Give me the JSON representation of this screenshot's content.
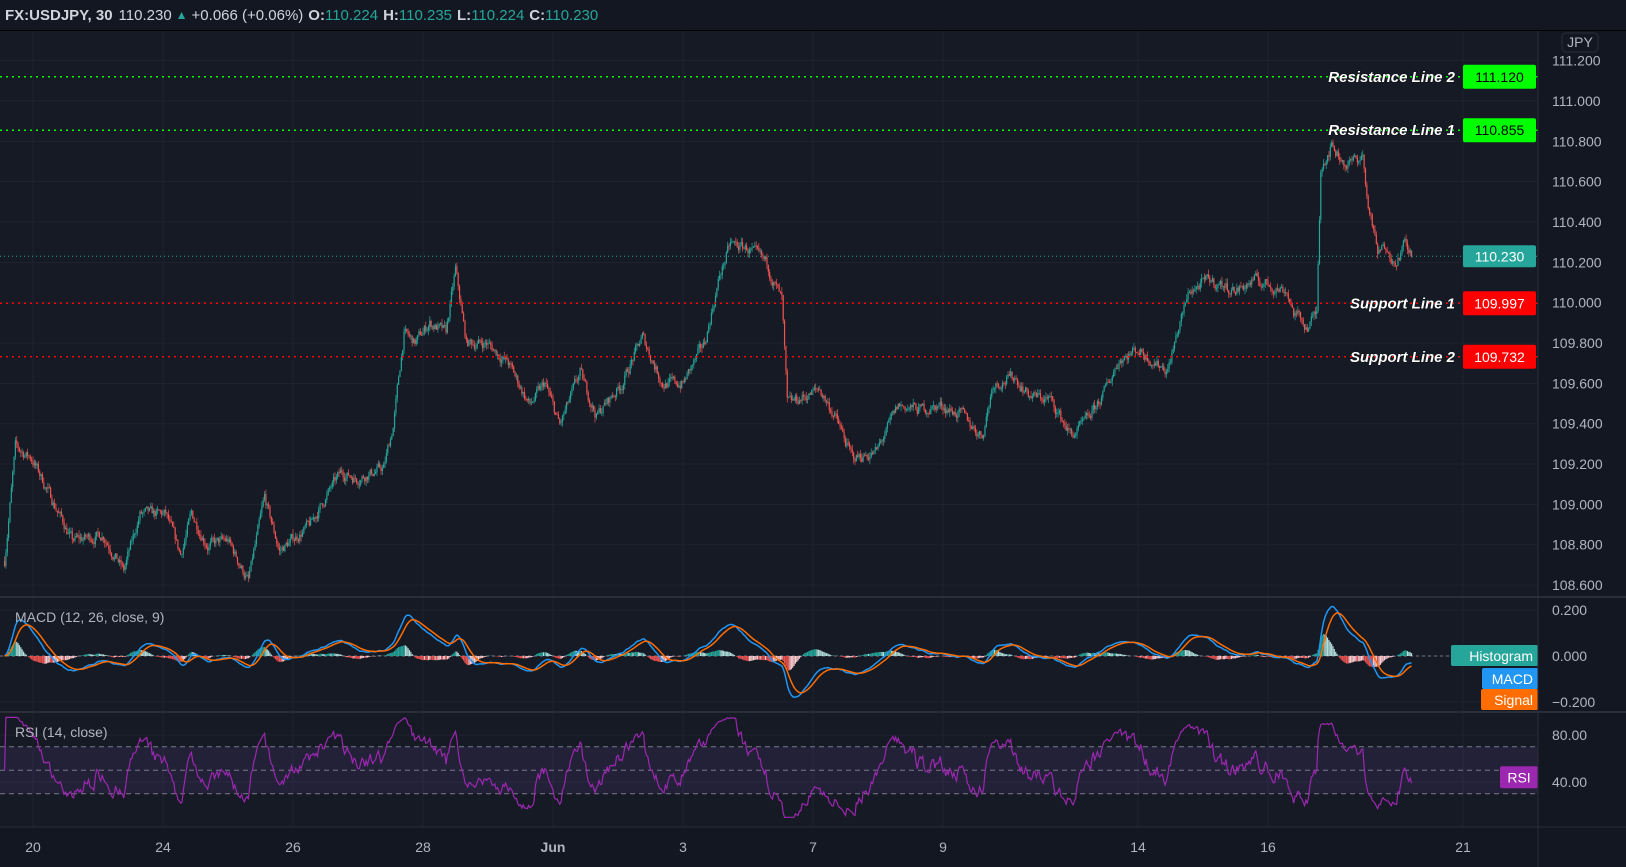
{
  "header": {
    "symbol": "FX:USDJPY, 30",
    "last": "110.230",
    "change": "+0.066 (+0.06%)",
    "open_label": "O:",
    "open": "110.224",
    "high_label": "H:",
    "high": "110.235",
    "low_label": "L:",
    "low": "110.224",
    "close_label": "C:",
    "close": "110.230",
    "direction_icon": "triangle-up-icon"
  },
  "currency_button": "JPY",
  "colors": {
    "background": "#131722",
    "up": "#26a69a",
    "down": "#ef5350",
    "resistance": "#00ff00",
    "support": "#ff0000",
    "macd": "#2196f3",
    "signal": "#ff6d00",
    "rsi": "#9c27b0"
  },
  "chart_data": [
    {
      "type": "candlestick",
      "interval": "30",
      "ylim": [
        108.52,
        111.35
      ],
      "y_ticks": [
        "108.600",
        "108.800",
        "109.000",
        "109.200",
        "109.400",
        "109.600",
        "109.800",
        "110.000",
        "110.200",
        "110.400",
        "110.600",
        "110.800",
        "111.000",
        "111.200"
      ],
      "x_ticks": [
        {
          "label": "20",
          "date": "May 20"
        },
        {
          "label": "24",
          "date": "May 24"
        },
        {
          "label": "26",
          "date": "May 26"
        },
        {
          "label": "28",
          "date": "May 28"
        },
        {
          "label": "Jun",
          "date": "Jun 1"
        },
        {
          "label": "3",
          "date": "Jun 3"
        },
        {
          "label": "7",
          "date": "Jun 7"
        },
        {
          "label": "9",
          "date": "Jun 9"
        },
        {
          "label": "14",
          "date": "Jun 14"
        },
        {
          "label": "16",
          "date": "Jun 16"
        },
        {
          "label": "21",
          "date": "Jun 21"
        }
      ],
      "last_price": {
        "value": 110.23,
        "label": "110.230"
      },
      "horizontal_lines": [
        {
          "name": "Resistance Line 2",
          "value": 111.12,
          "label": "111.120",
          "kind": "resistance"
        },
        {
          "name": "Resistance Line 1",
          "value": 110.855,
          "label": "110.855",
          "kind": "resistance"
        },
        {
          "name": "Support Line 1",
          "value": 109.997,
          "label": "109.997",
          "kind": "support"
        },
        {
          "name": "Support Line 2",
          "value": 109.732,
          "label": "109.732",
          "kind": "support"
        }
      ],
      "price_path": [
        [
          "May 19 13:30",
          108.72
        ],
        [
          "May 19 17:30",
          109.28
        ],
        [
          "May 19 23:30",
          109.23
        ],
        [
          "May 20 05:00",
          109.08
        ],
        [
          "May 20 14:30",
          108.82
        ],
        [
          "May 21 02:00",
          108.85
        ],
        [
          "May 21 09:30",
          108.67
        ],
        [
          "May 21 15:30",
          108.95
        ],
        [
          "May 24 01:00",
          108.95
        ],
        [
          "May 24 06:30",
          108.75
        ],
        [
          "May 24 10:30",
          108.95
        ],
        [
          "May 24 16:30",
          108.8
        ],
        [
          "May 25 00:00",
          108.82
        ],
        [
          "May 25 07:30",
          108.62
        ],
        [
          "May 25 13:30",
          109.03
        ],
        [
          "May 25 19:00",
          108.77
        ],
        [
          "May 26 06:30",
          108.9
        ],
        [
          "May 26 14:00",
          109.08
        ],
        [
          "May 26 18:00",
          109.16
        ],
        [
          "May 26 23:30",
          109.13
        ],
        [
          "May 27 09:30",
          109.18
        ],
        [
          "May 27 13:00",
          109.39
        ],
        [
          "May 27 17:00",
          109.85
        ],
        [
          "May 27 21:00",
          109.8
        ],
        [
          "May 28 02:30",
          109.9
        ],
        [
          "May 28 08:30",
          109.85
        ],
        [
          "May 28 12:00",
          110.16
        ],
        [
          "May 28 16:00",
          109.8
        ],
        [
          "May 28 23:30",
          109.8
        ],
        [
          "May 31 07:30",
          109.7
        ],
        [
          "May 31 15:30",
          109.49
        ],
        [
          "May 31 21:00",
          109.6
        ],
        [
          "Jun 1 02:30",
          109.39
        ],
        [
          "Jun 1 10:00",
          109.65
        ],
        [
          "Jun 1 16:00",
          109.44
        ],
        [
          "Jun 2 01:30",
          109.6
        ],
        [
          "Jun 2 09:00",
          109.83
        ],
        [
          "Jun 2 16:30",
          109.6
        ],
        [
          "Jun 3 00:00",
          109.6
        ],
        [
          "Jun 3 08:00",
          109.8
        ],
        [
          "Jun 3 13:30",
          110.13
        ],
        [
          "Jun 3 17:30",
          110.29
        ],
        [
          "Jun 3 23:30",
          110.27
        ],
        [
          "Jun 4 07:00",
          110.19
        ],
        [
          "Jun 4 12:30",
          110.01
        ],
        [
          "Jun 4 14:30",
          109.49
        ],
        [
          "Jun 4 18:30",
          109.52
        ],
        [
          "Jun 7 02:30",
          109.57
        ],
        [
          "Jun 7 08:00",
          109.44
        ],
        [
          "Jun 7 14:30",
          109.23
        ],
        [
          "Jun 7 23:30",
          109.26
        ],
        [
          "Jun 8 07:30",
          109.49
        ],
        [
          "Jun 8 15:30",
          109.47
        ],
        [
          "Jun 8 23:30",
          109.49
        ],
        [
          "Jun 9 07:00",
          109.44
        ],
        [
          "Jun 9 14:30",
          109.34
        ],
        [
          "Jun 9 18:30",
          109.6
        ],
        [
          "Jun 10 02:30",
          109.63
        ],
        [
          "Jun 10 08:00",
          109.54
        ],
        [
          "Jun 10 15:30",
          109.52
        ],
        [
          "Jun 10 23:30",
          109.34
        ],
        [
          "Jun 11 05:00",
          109.41
        ],
        [
          "Jun 11 11:00",
          109.54
        ],
        [
          "Jun 11 17:00",
          109.72
        ],
        [
          "Jun 14 00:00",
          109.77
        ],
        [
          "Jun 14 07:00",
          109.7
        ],
        [
          "Jun 14 11:00",
          109.67
        ],
        [
          "Jun 14 14:30",
          109.85
        ],
        [
          "Jun 14 19:00",
          110.06
        ],
        [
          "Jun 15 02:30",
          110.11
        ],
        [
          "Jun 15 12:00",
          110.06
        ],
        [
          "Jun 15 19:00",
          110.11
        ],
        [
          "Jun 16 07:00",
          110.06
        ],
        [
          "Jun 16 09:30",
          109.95
        ],
        [
          "Jun 16 14:30",
          109.88
        ],
        [
          "Jun 16 18:00",
          109.95
        ],
        [
          "Jun 16 19:30",
          110.68
        ],
        [
          "Jun 16 23:30",
          110.78
        ],
        [
          "Jun 17 05:00",
          110.68
        ],
        [
          "Jun 17 11:00",
          110.73
        ],
        [
          "Jun 17 12:30",
          110.52
        ],
        [
          "Jun 17 16:30",
          110.24
        ],
        [
          "Jun 17 20:30",
          110.29
        ],
        [
          "Jun 17 22:30",
          110.19
        ],
        [
          "Jun 18 02:30",
          110.29
        ],
        [
          "Jun 18 05:00",
          110.23
        ]
      ]
    },
    {
      "type": "line",
      "title": "MACD (12, 26, close, 9)",
      "ylim": [
        -0.25,
        0.25
      ],
      "y_ticks": [
        "0.200",
        "0.000",
        "−0.200"
      ],
      "legend": [
        "Histogram",
        "MACD",
        "Signal"
      ],
      "legend_placement": "right"
    },
    {
      "type": "line",
      "title": "RSI (14, close)",
      "ylim": [
        5,
        100
      ],
      "y_ticks": [
        "80.00",
        "40.00"
      ],
      "bands": [
        30,
        50,
        70
      ],
      "legend": [
        "RSI"
      ],
      "legend_placement": "right"
    }
  ]
}
